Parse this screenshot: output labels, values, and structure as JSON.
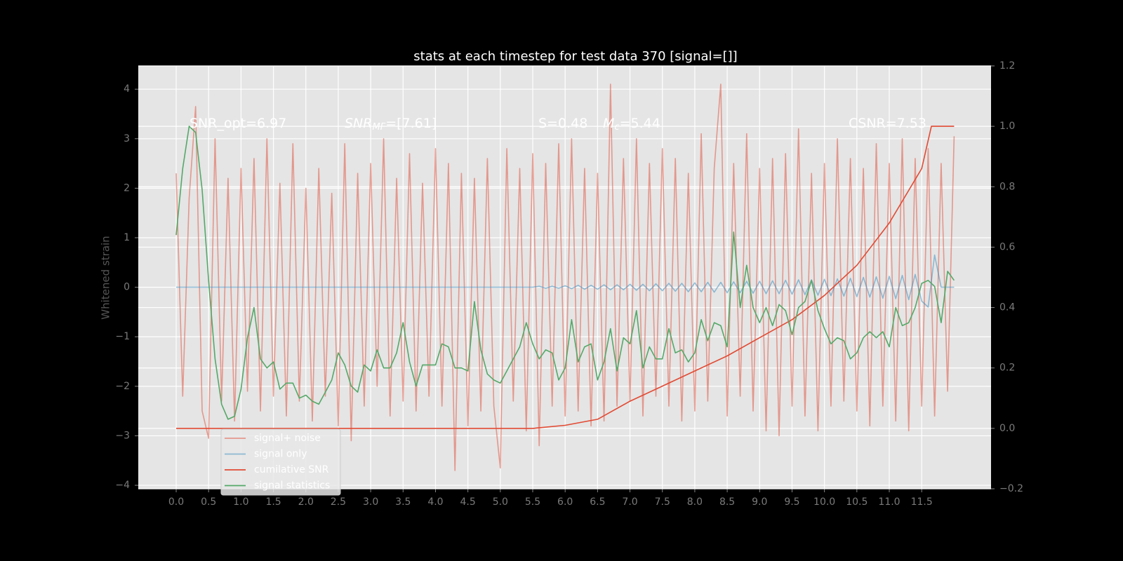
{
  "chart_data": {
    "type": "line",
    "title": "stats at each timestep for test data 370 [signal=[]]",
    "y_label": "Whitened strain",
    "annotations": [
      {
        "text": "SNR_opt=6.97"
      },
      {
        "text": "SNR",
        "sub": "MF",
        "rest": "=[7.61]"
      },
      {
        "text": "S=0.48"
      },
      {
        "text": "M",
        "sub": "c",
        "rest": "=5.44"
      },
      {
        "text": "CSNR=7.53"
      }
    ],
    "x": [
      0,
      0.1,
      0.2,
      0.3,
      0.4,
      0.5,
      0.6,
      0.7,
      0.8,
      0.9,
      1,
      1.1,
      1.2,
      1.3,
      1.4,
      1.5,
      1.6,
      1.7,
      1.8,
      1.9,
      2,
      2.1,
      2.2,
      2.3,
      2.4,
      2.5,
      2.6,
      2.7,
      2.8,
      2.9,
      3,
      3.1,
      3.2,
      3.3,
      3.4,
      3.5,
      3.6,
      3.7,
      3.8,
      3.9,
      4,
      4.1,
      4.2,
      4.3,
      4.4,
      4.5,
      4.6,
      4.7,
      4.8,
      4.9,
      5,
      5.1,
      5.2,
      5.3,
      5.4,
      5.5,
      5.6,
      5.7,
      5.8,
      5.9,
      6,
      6.1,
      6.2,
      6.3,
      6.4,
      6.5,
      6.6,
      6.7,
      6.8,
      6.9,
      7,
      7.1,
      7.2,
      7.3,
      7.4,
      7.5,
      7.6,
      7.7,
      7.8,
      7.9,
      8,
      8.1,
      8.2,
      8.3,
      8.4,
      8.5,
      8.6,
      8.7,
      8.8,
      8.9,
      9,
      9.1,
      9.2,
      9.3,
      9.4,
      9.5,
      9.6,
      9.7,
      9.8,
      9.9,
      10,
      10.1,
      10.2,
      10.3,
      10.4,
      10.5,
      10.6,
      10.7,
      10.8,
      10.9,
      11,
      11.1,
      11.2,
      11.3,
      11.4,
      11.5,
      11.6,
      11.7,
      11.8,
      11.9,
      12
    ],
    "series": [
      {
        "name": "signal+ noise",
        "color": "#E24A33",
        "opacity": 0.5,
        "values": [
          2.3,
          -2.2,
          1.8,
          3.65,
          -2.5,
          -3.05,
          3.0,
          -2.3,
          2.2,
          -2.7,
          2.4,
          -2.1,
          2.6,
          -2.5,
          3.0,
          -2.2,
          2.1,
          -2.6,
          2.9,
          -2.3,
          2.0,
          -2.7,
          2.4,
          -2.2,
          1.9,
          -2.8,
          2.9,
          -3.1,
          2.3,
          -2.4,
          2.5,
          -2.0,
          3.0,
          -2.6,
          2.2,
          -2.3,
          2.7,
          -2.5,
          2.1,
          -2.2,
          2.8,
          -2.4,
          2.5,
          -3.7,
          2.3,
          -2.8,
          2.2,
          -2.5,
          2.6,
          -2.4,
          -3.65,
          2.8,
          -2.3,
          2.4,
          -2.9,
          2.7,
          -3.2,
          2.5,
          -2.4,
          2.9,
          -2.6,
          3.0,
          -2.5,
          2.4,
          -2.8,
          2.3,
          -2.7,
          4.1,
          -2.4,
          2.6,
          -2.3,
          3.0,
          -2.6,
          2.5,
          -2.2,
          2.8,
          -2.4,
          2.6,
          -2.7,
          2.3,
          -2.5,
          3.1,
          -2.3,
          2.4,
          4.1,
          -2.6,
          2.5,
          -2.2,
          3.1,
          -2.5,
          2.4,
          -2.9,
          2.6,
          -3.0,
          2.7,
          -2.4,
          3.2,
          -2.6,
          2.3,
          -2.9,
          2.5,
          -2.4,
          3.0,
          -2.3,
          2.6,
          -2.5,
          2.4,
          -2.8,
          2.9,
          -2.4,
          2.5,
          -2.7,
          3.0,
          -2.9,
          2.6,
          -2.4,
          2.8,
          -2.6,
          2.5,
          -2.1,
          3.05
        ]
      },
      {
        "name": "signal only",
        "color": "#348ABD",
        "opacity": 0.5,
        "values": [
          0,
          0,
          0,
          0,
          0,
          0,
          0,
          0,
          0,
          0,
          0,
          0,
          0,
          0,
          0,
          0,
          0,
          0,
          0,
          0,
          0,
          0,
          0,
          0,
          0,
          0,
          0,
          0,
          0,
          0,
          0,
          0,
          0,
          0,
          0,
          0,
          0,
          0,
          0,
          0,
          0,
          0,
          0,
          0,
          0,
          0,
          0,
          0,
          0,
          0,
          0,
          0,
          0,
          0,
          0,
          0,
          0.02,
          -0.02,
          0.02,
          -0.02,
          0.03,
          -0.03,
          0.04,
          -0.04,
          0.04,
          -0.04,
          0.05,
          -0.05,
          0.05,
          -0.05,
          0.06,
          -0.06,
          0.06,
          -0.07,
          0.07,
          -0.07,
          0.08,
          -0.08,
          0.08,
          -0.09,
          0.09,
          -0.09,
          0.1,
          -0.1,
          0.1,
          -0.11,
          0.11,
          -0.11,
          0.12,
          -0.12,
          0.12,
          -0.13,
          0.13,
          -0.13,
          0.14,
          -0.14,
          0.15,
          -0.15,
          0.15,
          -0.16,
          0.16,
          -0.17,
          0.17,
          -0.18,
          0.18,
          -0.19,
          0.2,
          -0.2,
          0.21,
          -0.22,
          0.22,
          -0.23,
          0.24,
          -0.25,
          0.26,
          -0.28,
          -0.4,
          0.65,
          0,
          0,
          0
        ]
      },
      {
        "name": "cumilative SNR",
        "color": "#E24A33",
        "axis": "y2",
        "x": [
          0,
          5.5,
          6.0,
          6.5,
          7.0,
          7.5,
          8.0,
          8.5,
          9.0,
          9.5,
          10.0,
          10.5,
          11.0,
          11.5,
          11.65,
          12.0
        ],
        "values": [
          0,
          0,
          0.01,
          0.03,
          0.09,
          0.14,
          0.19,
          0.24,
          0.3,
          0.36,
          0.44,
          0.54,
          0.68,
          0.86,
          1.0,
          1.0
        ]
      },
      {
        "name": "signal statistics",
        "color": "#55A868",
        "axis": "y2",
        "values": [
          0.64,
          0.86,
          1.0,
          0.98,
          0.79,
          0.49,
          0.23,
          0.08,
          0.03,
          0.04,
          0.13,
          0.3,
          0.4,
          0.23,
          0.2,
          0.22,
          0.13,
          0.15,
          0.15,
          0.1,
          0.11,
          0.09,
          0.08,
          0.12,
          0.16,
          0.25,
          0.21,
          0.14,
          0.12,
          0.21,
          0.19,
          0.26,
          0.2,
          0.2,
          0.25,
          0.35,
          0.22,
          0.14,
          0.21,
          0.21,
          0.21,
          0.28,
          0.27,
          0.2,
          0.2,
          0.19,
          0.42,
          0.26,
          0.18,
          0.16,
          0.15,
          0.19,
          0.23,
          0.27,
          0.35,
          0.28,
          0.23,
          0.26,
          0.25,
          0.16,
          0.2,
          0.36,
          0.22,
          0.27,
          0.28,
          0.16,
          0.22,
          0.33,
          0.19,
          0.3,
          0.28,
          0.39,
          0.2,
          0.27,
          0.23,
          0.23,
          0.33,
          0.25,
          0.26,
          0.22,
          0.25,
          0.36,
          0.29,
          0.35,
          0.34,
          0.27,
          0.65,
          0.4,
          0.54,
          0.4,
          0.35,
          0.4,
          0.34,
          0.41,
          0.39,
          0.31,
          0.4,
          0.42,
          0.49,
          0.39,
          0.33,
          0.28,
          0.3,
          0.29,
          0.23,
          0.25,
          0.3,
          0.32,
          0.3,
          0.32,
          0.27,
          0.4,
          0.34,
          0.35,
          0.4,
          0.48,
          0.49,
          0.47,
          0.35,
          0.52,
          0.49
        ]
      }
    ],
    "xlim": [
      -0.585,
      12.57
    ],
    "xticks": [
      {
        "value": 0,
        "label": "0.0"
      },
      0.5,
      {
        "value": 1,
        "label": "1.0"
      },
      1.5,
      {
        "value": 2,
        "label": "2.0"
      },
      2.5,
      {
        "value": 3,
        "label": "3.0"
      },
      3.5,
      {
        "value": 4,
        "label": "4.0"
      },
      4.5,
      {
        "value": 5,
        "label": "5.0"
      },
      5.5,
      {
        "value": 6,
        "label": "6.0"
      },
      6.5,
      {
        "value": 7,
        "label": "7.0"
      },
      7.5,
      {
        "value": 8,
        "label": "8.0"
      },
      8.5,
      {
        "value": 9,
        "label": "9.0"
      },
      9.5,
      {
        "value": 10,
        "label": "10.0"
      },
      10.5,
      {
        "value": 11,
        "label": "11.0"
      },
      11.5
    ],
    "ylim": [
      -4.07,
      4.47
    ],
    "yticks": [
      {
        "value": -4,
        "label": "−4"
      },
      {
        "value": -3,
        "label": "−3"
      },
      {
        "value": -2,
        "label": "−2"
      },
      {
        "value": -1,
        "label": "−1"
      },
      0,
      1,
      2,
      3,
      4
    ],
    "y2lim": [
      -0.2,
      1.2
    ],
    "y2ticks": [
      {
        "value": -0.2,
        "label": "−0.2"
      },
      {
        "value": 0,
        "label": "0.0"
      },
      0.2,
      0.4,
      0.6,
      0.8,
      {
        "value": 1,
        "label": "1.0"
      },
      1.2
    ],
    "grid": true,
    "legend": "lower left"
  }
}
